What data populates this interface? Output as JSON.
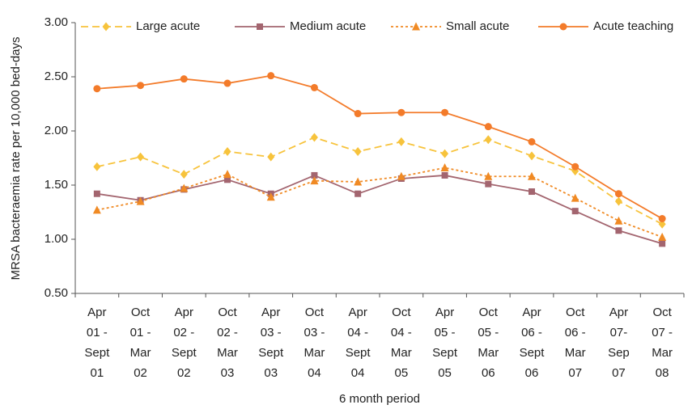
{
  "chart_data": {
    "type": "line",
    "y_label": "MRSA bacteraemia rate per 10,000 bed-days",
    "x_label": "6 month period",
    "categories": [
      [
        "Apr",
        "01 -",
        "Sept",
        "01"
      ],
      [
        "Oct",
        "01 -",
        "Mar",
        "02"
      ],
      [
        "Apr",
        "02 -",
        "Sept",
        "02"
      ],
      [
        "Oct",
        "02 -",
        "Mar",
        "03"
      ],
      [
        "Apr",
        "03 -",
        "Sept",
        "03"
      ],
      [
        "Oct",
        "03 -",
        "Mar",
        "04"
      ],
      [
        "Apr",
        "04 -",
        "Sept",
        "04"
      ],
      [
        "Oct",
        "04 -",
        "Mar",
        "05"
      ],
      [
        "Apr",
        "05 -",
        "Sept",
        "05"
      ],
      [
        "Oct",
        "05 -",
        "Mar",
        "06"
      ],
      [
        "Apr",
        "06 -",
        "Sept",
        "06"
      ],
      [
        "Oct",
        "06 -",
        "Mar",
        "07"
      ],
      [
        "Apr",
        "07-",
        "Sep",
        "07"
      ],
      [
        "Oct",
        "07 -",
        "Mar",
        "08"
      ]
    ],
    "series": [
      {
        "name": "Large acute",
        "color": "#f7c33c",
        "dash": "dashed",
        "marker": "diamond",
        "values": [
          1.67,
          1.76,
          1.6,
          1.81,
          1.76,
          1.94,
          1.81,
          1.9,
          1.79,
          1.92,
          1.77,
          1.63,
          1.35,
          1.14
        ]
      },
      {
        "name": "Medium acute",
        "color": "#a3656f",
        "dash": "solid",
        "marker": "square",
        "values": [
          1.42,
          1.36,
          1.46,
          1.55,
          1.42,
          1.59,
          1.42,
          1.56,
          1.59,
          1.51,
          1.44,
          1.26,
          1.08,
          0.96
        ]
      },
      {
        "name": "Small acute",
        "color": "#f08a24",
        "dash": "dotted",
        "marker": "triangle",
        "values": [
          1.27,
          1.35,
          1.47,
          1.6,
          1.39,
          1.54,
          1.53,
          1.58,
          1.66,
          1.58,
          1.58,
          1.38,
          1.17,
          1.02
        ]
      },
      {
        "name": "Acute teaching",
        "color": "#f37b2a",
        "dash": "solid",
        "marker": "circle",
        "values": [
          2.39,
          2.42,
          2.48,
          2.44,
          2.51,
          2.4,
          2.16,
          2.17,
          2.17,
          2.04,
          1.9,
          1.67,
          1.42,
          1.19
        ]
      }
    ],
    "ylim": [
      0.5,
      3.0
    ],
    "yticks": [
      {
        "value": 0.5,
        "label": "0.50"
      },
      {
        "value": 1.0,
        "label": "1.00"
      },
      {
        "value": 1.5,
        "label": "1.50"
      },
      {
        "value": 2.0,
        "label": "2.00"
      },
      {
        "value": 2.5,
        "label": "2.50"
      },
      {
        "value": 3.0,
        "label": "3.00"
      }
    ],
    "grid": false,
    "legend": "top"
  }
}
